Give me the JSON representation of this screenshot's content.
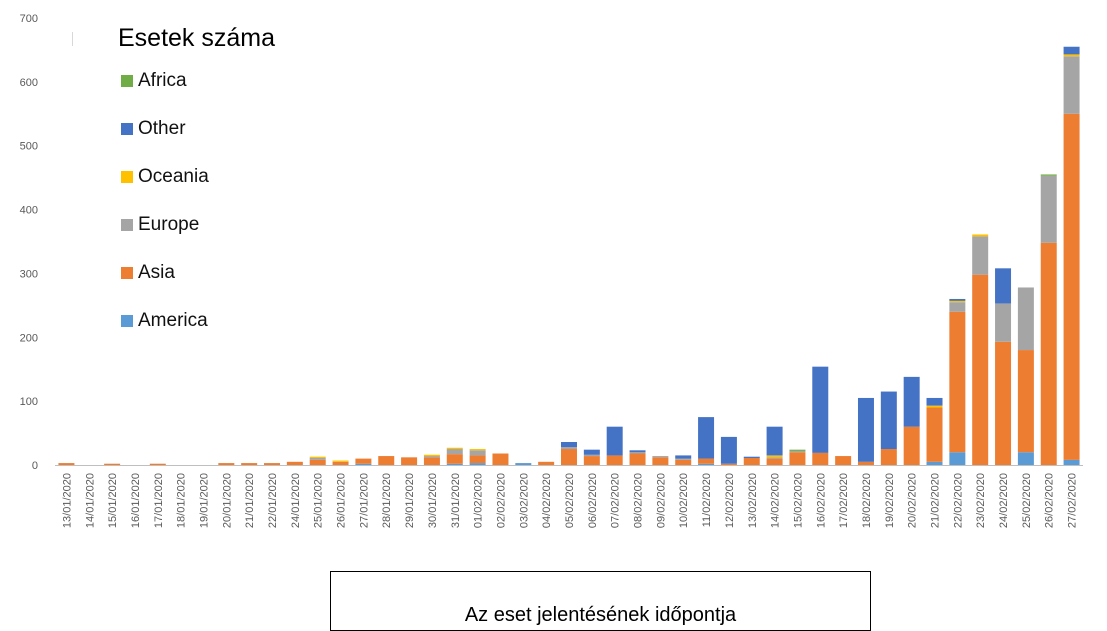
{
  "chart_data": {
    "type": "bar",
    "stacked": true,
    "legend_title": "Esetek száma",
    "xlabel": "Az eset jelentésének időpontja",
    "ylabel": "",
    "ylim": [
      0,
      700
    ],
    "yticks": [
      0,
      100,
      200,
      300,
      400,
      500,
      600,
      700
    ],
    "grid": false,
    "legend_position": "top-left",
    "categories": [
      "13/01/2020",
      "14/01/2020",
      "15/01/2020",
      "16/01/2020",
      "17/01/2020",
      "18/01/2020",
      "19/01/2020",
      "20/01/2020",
      "21/01/2020",
      "22/01/2020",
      "24/01/2020",
      "25/01/2020",
      "26/01/2020",
      "27/01/2020",
      "28/01/2020",
      "29/01/2020",
      "30/01/2020",
      "31/01/2020",
      "01/02/2020",
      "02/02/2020",
      "03/02/2020",
      "04/02/2020",
      "05/02/2020",
      "06/02/2020",
      "07/02/2020",
      "08/02/2020",
      "09/02/2020",
      "10/02/2020",
      "11/02/2020",
      "12/02/2020",
      "13/02/2020",
      "14/02/2020",
      "15/02/2020",
      "16/02/2020",
      "17/02/2020",
      "18/02/2020",
      "19/02/2020",
      "20/02/2020",
      "21/02/2020",
      "22/02/2020",
      "23/02/2020",
      "24/02/2020",
      "25/02/2020",
      "26/02/2020",
      "27/02/2020"
    ],
    "series": [
      {
        "name": "America",
        "color": "#5b9bd5",
        "values": [
          0,
          0,
          0,
          0,
          0,
          0,
          0,
          0,
          0,
          0,
          0,
          0,
          0,
          2,
          0,
          0,
          0,
          2,
          3,
          0,
          3,
          0,
          0,
          0,
          0,
          0,
          0,
          0,
          2,
          0,
          0,
          0,
          0,
          0,
          0,
          0,
          0,
          0,
          5,
          20,
          0,
          0,
          20,
          0,
          8
        ]
      },
      {
        "name": "Asia",
        "color": "#ed7d31",
        "values": [
          3,
          0,
          2,
          0,
          2,
          0,
          0,
          3,
          3,
          3,
          5,
          8,
          5,
          8,
          14,
          12,
          12,
          15,
          12,
          18,
          0,
          5,
          25,
          14,
          15,
          18,
          12,
          8,
          8,
          2,
          11,
          10,
          20,
          19,
          14,
          5,
          25,
          60,
          85,
          220,
          298,
          193,
          160,
          348,
          542
        ]
      },
      {
        "name": "Europe",
        "color": "#a5a5a5",
        "values": [
          0,
          0,
          0,
          0,
          0,
          0,
          0,
          0,
          0,
          0,
          0,
          3,
          0,
          0,
          0,
          0,
          2,
          8,
          8,
          0,
          0,
          0,
          3,
          2,
          0,
          2,
          2,
          2,
          0,
          0,
          0,
          2,
          2,
          0,
          0,
          0,
          0,
          0,
          0,
          15,
          60,
          60,
          98,
          105,
          90
        ]
      },
      {
        "name": "Oceania",
        "color": "#ffc000",
        "values": [
          0,
          0,
          0,
          0,
          0,
          0,
          0,
          0,
          0,
          0,
          0,
          2,
          2,
          0,
          0,
          0,
          2,
          2,
          2,
          0,
          0,
          0,
          0,
          0,
          0,
          0,
          0,
          0,
          0,
          0,
          0,
          3,
          0,
          0,
          0,
          0,
          0,
          0,
          3,
          2,
          3,
          0,
          0,
          0,
          3
        ]
      },
      {
        "name": "Other",
        "color": "#4472c4",
        "values": [
          0,
          0,
          0,
          0,
          0,
          0,
          0,
          0,
          0,
          0,
          0,
          0,
          0,
          0,
          0,
          0,
          0,
          0,
          0,
          0,
          0,
          0,
          8,
          8,
          45,
          3,
          0,
          5,
          65,
          42,
          2,
          45,
          0,
          135,
          0,
          100,
          90,
          78,
          12,
          3,
          0,
          55,
          0,
          0,
          12
        ]
      },
      {
        "name": "Africa",
        "color": "#70ad47",
        "values": [
          0,
          0,
          0,
          0,
          0,
          0,
          0,
          0,
          0,
          0,
          0,
          0,
          0,
          0,
          0,
          0,
          0,
          0,
          0,
          0,
          0,
          0,
          0,
          0,
          0,
          0,
          0,
          0,
          0,
          0,
          0,
          0,
          2,
          0,
          0,
          0,
          0,
          0,
          0,
          0,
          0,
          0,
          0,
          2,
          0
        ]
      }
    ],
    "legend_order": [
      "Africa",
      "Other",
      "Oceania",
      "Europe",
      "Asia",
      "America"
    ]
  }
}
